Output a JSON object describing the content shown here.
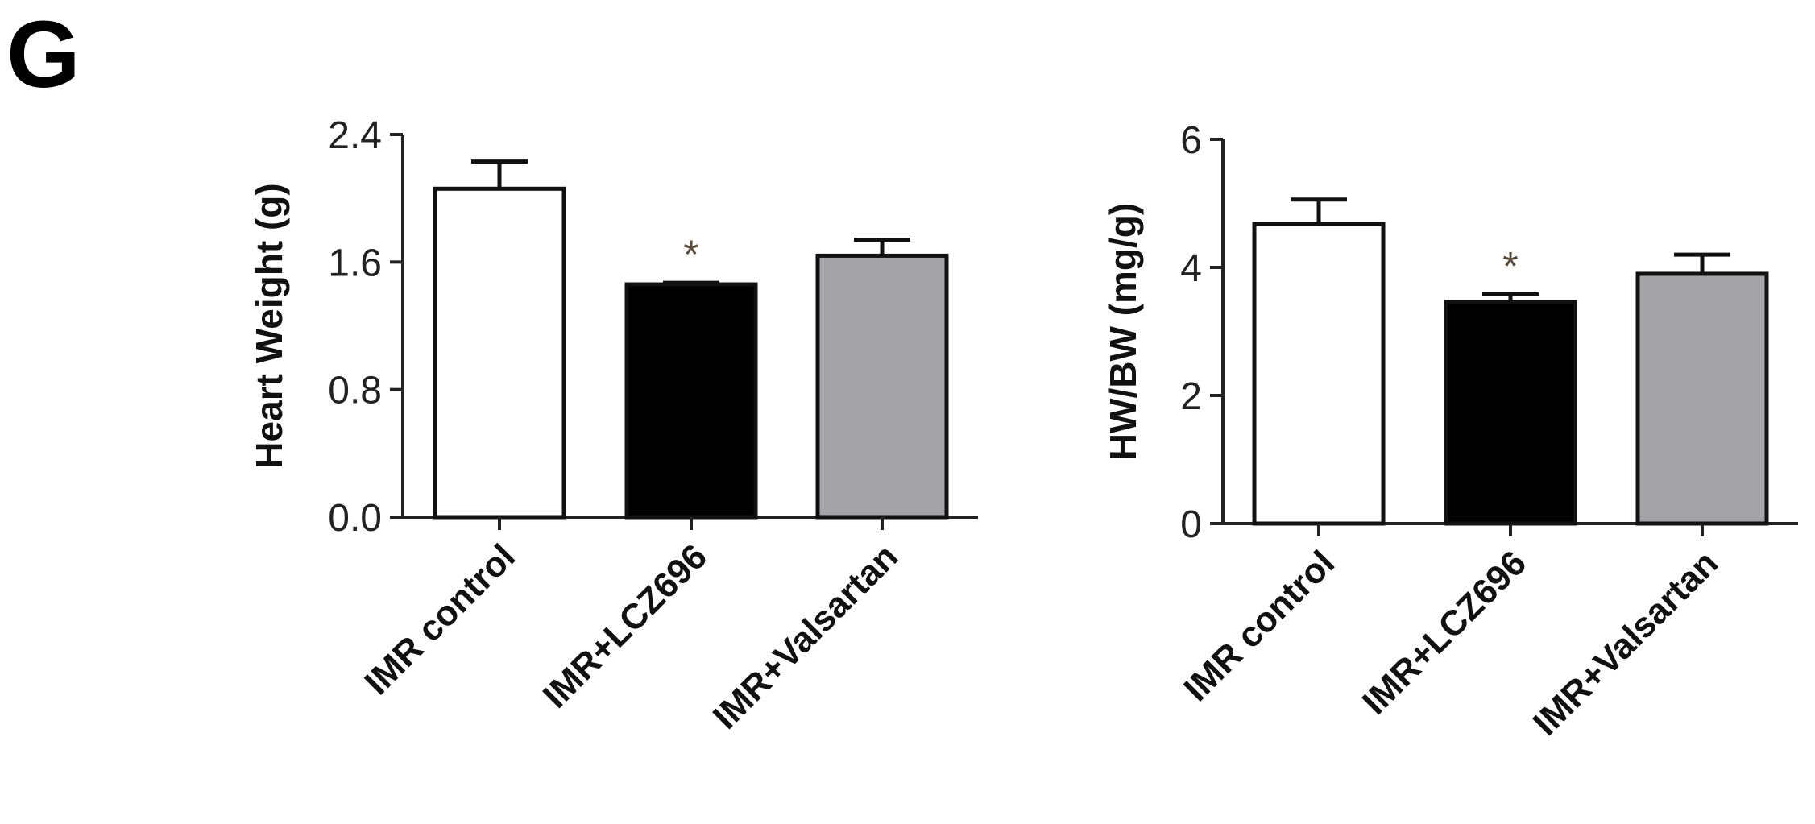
{
  "panel_label": "G",
  "chart_data": [
    {
      "type": "bar",
      "ylabel": "Heart Weight (g)",
      "ylim": [
        0,
        2.4
      ],
      "yticks": [
        "0.0",
        "0.8",
        "1.6",
        "2.4"
      ],
      "categories": [
        "IMR control",
        "IMR+LCZ696",
        "IMR+Valsartan"
      ],
      "values": [
        2.06,
        1.46,
        1.64
      ],
      "errors": [
        0.17,
        0.01,
        0.1
      ],
      "colors": [
        "#ffffff",
        "#000000",
        "#a3a3a8"
      ],
      "significance": [
        "",
        "*",
        ""
      ],
      "grid": false
    },
    {
      "type": "bar",
      "ylabel": "HW/BW (mg/g)",
      "ylim": [
        0,
        6
      ],
      "yticks": [
        "0",
        "2",
        "4",
        "6"
      ],
      "categories": [
        "IMR control",
        "IMR+LCZ696",
        "IMR+Valsartan"
      ],
      "values": [
        4.68,
        3.46,
        3.9
      ],
      "errors": [
        0.38,
        0.12,
        0.3
      ],
      "colors": [
        "#ffffff",
        "#000000",
        "#a3a3a8"
      ],
      "significance": [
        "",
        "*",
        ""
      ],
      "grid": false
    }
  ]
}
